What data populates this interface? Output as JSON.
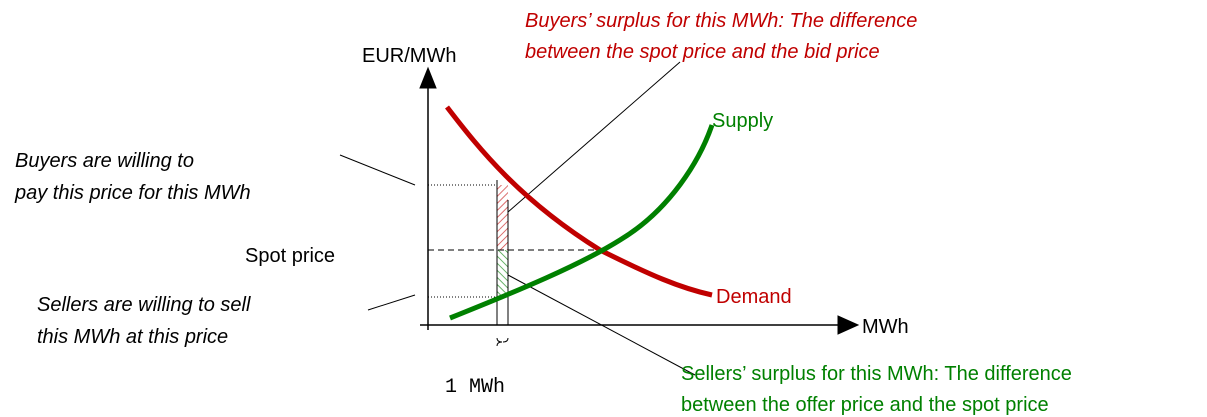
{
  "axes": {
    "y_label": "EUR/MWh",
    "x_label": "MWh"
  },
  "curves": {
    "supply": "Supply",
    "demand": "Demand"
  },
  "annotations": {
    "buyers_surplus": [
      "Buyers’ surplus for this MWh: The difference",
      "between the spot price and the bid price"
    ],
    "buyers_willing": [
      "Buyers are willing to",
      "pay this price for this MWh"
    ],
    "spot_price": "Spot price",
    "sellers_willing": [
      "Sellers are willing to sell",
      "this MWh at this price"
    ],
    "unit": "1 MWh",
    "sellers_surplus": [
      "Sellers’ surplus for this MWh: The difference",
      "between the offer price and the spot price"
    ]
  }
}
